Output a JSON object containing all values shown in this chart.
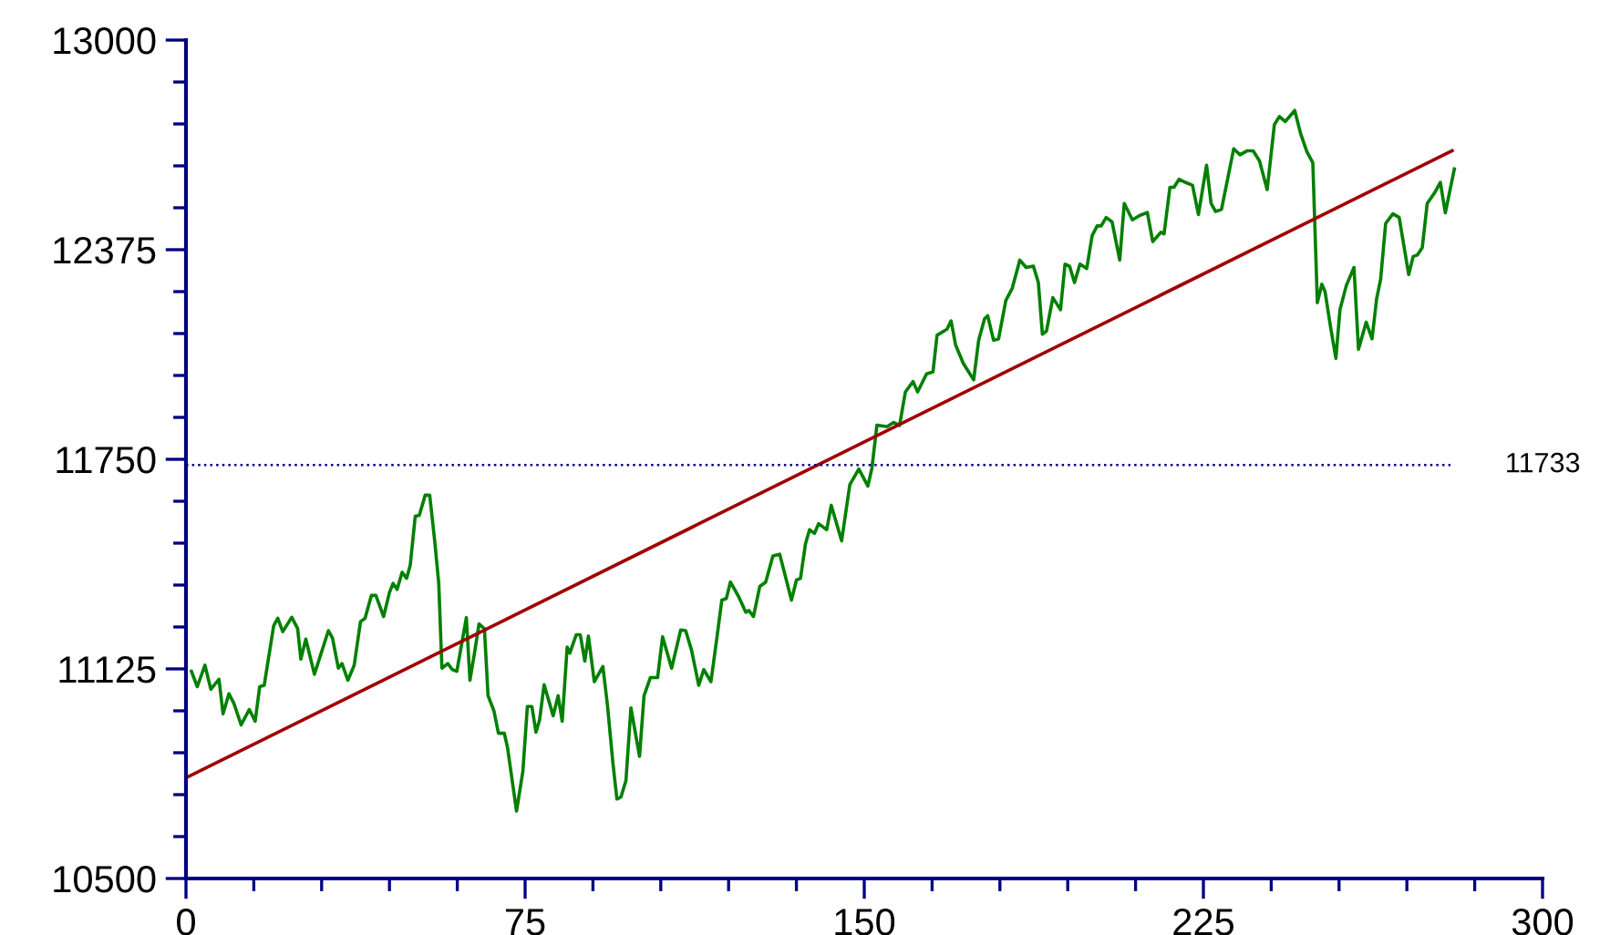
{
  "chart_data": {
    "type": "line",
    "xlim": [
      0,
      300
    ],
    "xticks": [
      0,
      75,
      150,
      225,
      300
    ],
    "ylim": [
      10500,
      13000
    ],
    "yticks": [
      10500,
      11125,
      11750,
      12375,
      13000
    ],
    "grid": false,
    "legend": false,
    "marker": "none",
    "line_style": "solid",
    "ref_lines": [
      {
        "axis": "y",
        "value": 11733,
        "label": "11733",
        "color": "#000080",
        "line_style": "dotted"
      }
    ],
    "series": [
      {
        "color": "#008000",
        "x": [
          1.2,
          2.5,
          4.2,
          5.5,
          7.3,
          8.2,
          9.5,
          10.6,
          12.2,
          14,
          15.3,
          16.3,
          17.3,
          19.4,
          20.3,
          21.4,
          23.4,
          24.7,
          25.4,
          26.5,
          28.4,
          31.5,
          32.4,
          33.7,
          34.5,
          35.8,
          37.2,
          38.6,
          39.6,
          41,
          42,
          43.7,
          45,
          45.8,
          46.7,
          47.8,
          48.8,
          49.6,
          50.7,
          51.6,
          52.9,
          53.9,
          55,
          55.9,
          56.6,
          57.9,
          58.9,
          59.9,
          62,
          62.8,
          63.8,
          64.8,
          66,
          66.8,
          68.1,
          69.1,
          70.4,
          71.1,
          73.1,
          74.5,
          75.5,
          76.5,
          77.4,
          78.2,
          79.2,
          80.5,
          81.2,
          82.3,
          83.2,
          84.3,
          84.9,
          86.3,
          87.2,
          88.2,
          89,
          90.3,
          92.2,
          93.2,
          94.4,
          95.3,
          96.2,
          97.3,
          98.4,
          100.3,
          101.3,
          102.7,
          104.3,
          105.4,
          107.4,
          109.4,
          110.5,
          111.8,
          113.4,
          114.5,
          116.1,
          117.5,
          118.5,
          119.5,
          120.4,
          122.2,
          123.8,
          124.5,
          125.5,
          126.9,
          128.2,
          129.8,
          131.3,
          133.9,
          135,
          135.9,
          137,
          137.9,
          139,
          139.9,
          141.7,
          142.7,
          145,
          146.8,
          148.8,
          150.8,
          151.7,
          152.8,
          154.8,
          155.1,
          156.5,
          157.8,
          159.1,
          160.8,
          161.8,
          163.8,
          165.2,
          166.1,
          168.3,
          169.2,
          170.2,
          171.9,
          174.2,
          175.3,
          176.6,
          177.3,
          178.6,
          179.7,
          181.3,
          182.7,
          184.4,
          185.8,
          187.4,
          188.5,
          189.4,
          190.3,
          191.7,
          193.4,
          194.4,
          195.4,
          196.5,
          197.7,
          199.2,
          200.4,
          201.5,
          202.4,
          203.5,
          204.8,
          206.5,
          207.5,
          209.3,
          210.9,
          212.6,
          213.8,
          215.6,
          216.3,
          217.6,
          218.5,
          219.6,
          221,
          222.6,
          223.9,
          225.7,
          226.7,
          227.7,
          229,
          231.7,
          233.1,
          234.7,
          236,
          237.4,
          239.1,
          240.7,
          241.8,
          243.1,
          245.2,
          246.5,
          247.9,
          249.2,
          250.2,
          251.2,
          251.9,
          253.2,
          254.3,
          255.2,
          256.6,
          258.3,
          259.3,
          261,
          262.3,
          263.3,
          264.2,
          265.3,
          266.9,
          268.3,
          270.4,
          271.4,
          272.3,
          273.4,
          274.5,
          276.1,
          277.4,
          278.5,
          280.5
        ],
        "values": [
          11118,
          11072,
          11136,
          11064,
          11094,
          10991,
          11051,
          11022,
          10958,
          11004,
          10969,
          11072,
          11076,
          11254,
          11276,
          11236,
          11279,
          11245,
          11154,
          11214,
          11109,
          11239,
          11217,
          11127,
          11141,
          11091,
          11136,
          11266,
          11276,
          11344,
          11344,
          11281,
          11353,
          11380,
          11362,
          11413,
          11395,
          11435,
          11580,
          11583,
          11643,
          11643,
          11507,
          11380,
          11127,
          11141,
          11123,
          11118,
          11278,
          11091,
          11172,
          11259,
          11245,
          11045,
          11000,
          10933,
          10933,
          10891,
          10701,
          10819,
          11013,
          11013,
          10936,
          10973,
          11078,
          11018,
          10985,
          11045,
          10969,
          11190,
          11172,
          11227,
          11227,
          11148,
          11223,
          11087,
          11132,
          11018,
          10846,
          10737,
          10743,
          10792,
          11009,
          10864,
          11045,
          11099,
          11099,
          11221,
          11127,
          11241,
          11239,
          11181,
          11076,
          11123,
          11087,
          11227,
          11330,
          11335,
          11384,
          11341,
          11294,
          11299,
          11281,
          11371,
          11384,
          11462,
          11467,
          11330,
          11390,
          11395,
          11498,
          11540,
          11529,
          11558,
          11540,
          11613,
          11507,
          11674,
          11721,
          11670,
          11724,
          11852,
          11848,
          11848,
          11860,
          11851,
          11951,
          11982,
          11951,
          12005,
          12011,
          12120,
          12138,
          12163,
          12091,
          12036,
          11987,
          12105,
          12169,
          12178,
          12105,
          12109,
          12223,
          12259,
          12344,
          12322,
          12326,
          12277,
          12123,
          12132,
          12232,
          12196,
          12332,
          12326,
          12277,
          12332,
          12319,
          12417,
          12446,
          12446,
          12471,
          12458,
          12344,
          12513,
          12464,
          12477,
          12486,
          12399,
          12427,
          12422,
          12561,
          12561,
          12585,
          12576,
          12567,
          12480,
          12627,
          12513,
          12489,
          12495,
          12676,
          12658,
          12670,
          12670,
          12640,
          12554,
          12748,
          12772,
          12757,
          12790,
          12721,
          12667,
          12634,
          12217,
          12272,
          12250,
          12138,
          12051,
          12196,
          12268,
          12322,
          12078,
          12159,
          12109,
          12228,
          12287,
          12453,
          12482,
          12471,
          12301,
          12355,
          12359,
          12381,
          12513,
          12544,
          12576,
          12485,
          12616
        ]
      },
      {
        "color": "#a00000",
        "x": [
          0,
          280
        ],
        "values": [
          10800,
          12670
        ]
      }
    ]
  }
}
